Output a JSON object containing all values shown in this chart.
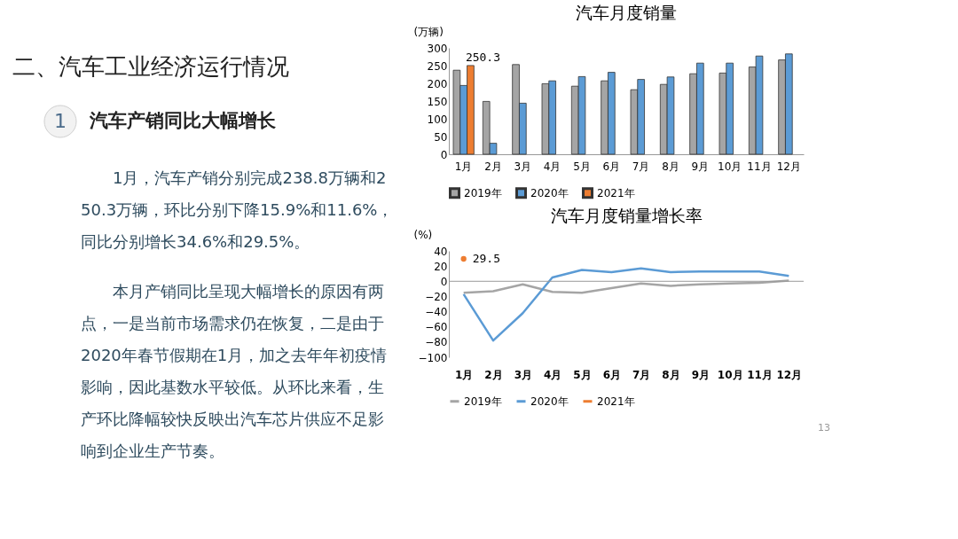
{
  "chart_data": [
    {
      "type": "other",
      "title": "二、汽车工业经济运行情况",
      "subtitle": "汽车产销同比大幅增长",
      "annotations": [
        "1",
        "1月，汽车产销分别完成238.8万辆和250.3万辆，环比分别下降15.9%和11.6%，同比分别增长34.6%和29.5%。",
        "本月产销同比呈现大幅增长的原因有两点，一是当前市场需求仍在恢复，二是由于2020年春节假期在1月，加之去年年初疫情影响，因此基数水平较低。从环比来看，生产环比降幅较快反映出汽车芯片供应不足影响到企业生产节奏。"
      ]
    },
    {
      "type": "bar",
      "title": "汽车月度销量",
      "ylabel": "(万辆)",
      "categories": [
        "1月",
        "2月",
        "3月",
        "4月",
        "5月",
        "6月",
        "7月",
        "8月",
        "9月",
        "10月",
        "11月",
        "12月"
      ],
      "series": [
        {
          "name": "2019年",
          "color": "#a5a5a5",
          "values": [
            237,
            149,
            253,
            199,
            192,
            207,
            182,
            197,
            227,
            229,
            246,
            266
          ]
        },
        {
          "name": "2020年",
          "color": "#5b9bd5",
          "values": [
            194,
            31,
            144,
            207,
            219,
            231,
            211,
            218,
            257,
            257,
            277,
            283
          ]
        },
        {
          "name": "2021年",
          "color": "#ed7d31",
          "values": [
            250.3,
            null,
            null,
            null,
            null,
            null,
            null,
            null,
            null,
            null,
            null,
            null
          ],
          "value_labels": [
            "250.3",
            null,
            null,
            null,
            null,
            null,
            null,
            null,
            null,
            null,
            null,
            null
          ]
        }
      ],
      "ylim": [
        0,
        300
      ],
      "yticks": [
        0,
        50,
        100,
        150,
        200,
        250,
        300
      ],
      "grid": false,
      "legend": "bottom"
    },
    {
      "type": "line",
      "title": "汽车月度销量增长率",
      "ylabel": "(%)",
      "categories": [
        "1月",
        "2月",
        "3月",
        "4月",
        "5月",
        "6月",
        "7月",
        "8月",
        "9月",
        "10月",
        "11月",
        "12月"
      ],
      "series": [
        {
          "name": "2019年",
          "color": "#a5a5a5",
          "values": [
            -15,
            -13,
            -4,
            -14,
            -15,
            -9,
            -3,
            -6,
            -4,
            -3,
            -2,
            1
          ]
        },
        {
          "name": "2020年",
          "color": "#5b9bd5",
          "values": [
            -17,
            -78,
            -42,
            5,
            15,
            12,
            17,
            12,
            13,
            13,
            13,
            7
          ]
        },
        {
          "name": "2021年",
          "color": "#ed7d31",
          "marker": "circle",
          "values": [
            29.5,
            null,
            null,
            null,
            null,
            null,
            null,
            null,
            null,
            null,
            null,
            null
          ],
          "value_labels": [
            "29.5",
            null,
            null,
            null,
            null,
            null,
            null,
            null,
            null,
            null,
            null,
            null
          ]
        }
      ],
      "ylim": [
        -100,
        40
      ],
      "yticks": [
        -100,
        -80,
        -60,
        -40,
        -20,
        0,
        20,
        40
      ],
      "grid": false,
      "legend": "bottom",
      "ref_lines": [
        {
          "axis": "y",
          "value": 0
        }
      ],
      "annotations": [
        "13"
      ]
    }
  ]
}
